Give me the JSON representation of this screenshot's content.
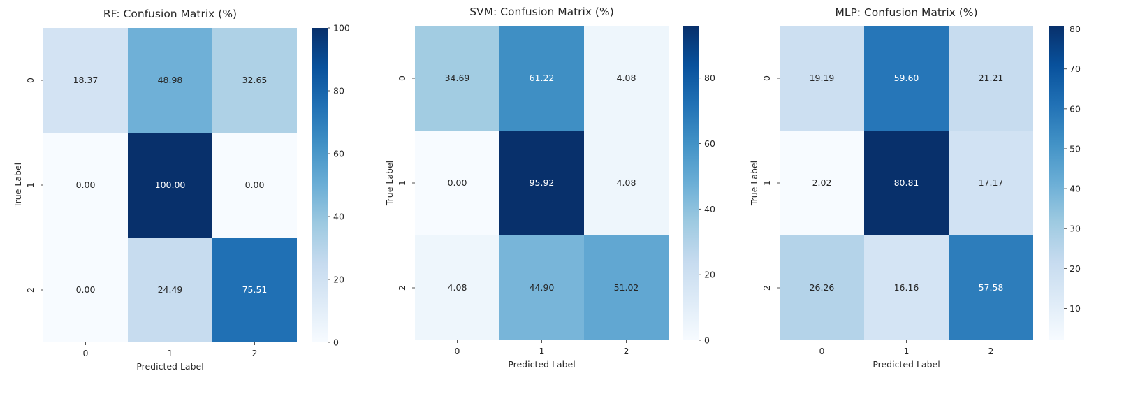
{
  "chart_data": [
    {
      "type": "heatmap",
      "title": "RF:  Confusion Matrix (%)",
      "xlabel": "Predicted Label",
      "ylabel": "True Label",
      "x_categories": [
        "0",
        "1",
        "2"
      ],
      "y_categories": [
        "0",
        "1",
        "2"
      ],
      "values": [
        [
          18.37,
          48.98,
          32.65
        ],
        [
          0.0,
          100.0,
          0.0
        ],
        [
          0.0,
          24.49,
          75.51
        ]
      ],
      "cell_labels": [
        [
          "18.37",
          "48.98",
          "32.65"
        ],
        [
          "0.00",
          "100.00",
          "0.00"
        ],
        [
          "0.00",
          "24.49",
          "75.51"
        ]
      ],
      "colorbar_range": [
        0,
        100
      ],
      "colorbar_ticks": [
        "0",
        "20",
        "40",
        "60",
        "80",
        "100"
      ],
      "colormap": "Blues"
    },
    {
      "type": "heatmap",
      "title": "SVM:  Confusion Matrix (%)",
      "xlabel": "Predicted Label",
      "ylabel": "True Label",
      "x_categories": [
        "0",
        "1",
        "2"
      ],
      "y_categories": [
        "0",
        "1",
        "2"
      ],
      "values": [
        [
          34.69,
          61.22,
          4.08
        ],
        [
          0.0,
          95.92,
          4.08
        ],
        [
          4.08,
          44.9,
          51.02
        ]
      ],
      "cell_labels": [
        [
          "34.69",
          "61.22",
          "4.08"
        ],
        [
          "0.00",
          "95.92",
          "4.08"
        ],
        [
          "4.08",
          "44.90",
          "51.02"
        ]
      ],
      "colorbar_range": [
        0,
        95.92
      ],
      "colorbar_ticks": [
        "0",
        "20",
        "40",
        "60",
        "80"
      ],
      "colormap": "Blues"
    },
    {
      "type": "heatmap",
      "title": "MLP: Confusion Matrix (%)",
      "xlabel": "Predicted Label",
      "ylabel": "True Label",
      "x_categories": [
        "0",
        "1",
        "2"
      ],
      "y_categories": [
        "0",
        "1",
        "2"
      ],
      "values": [
        [
          19.19,
          59.6,
          21.21
        ],
        [
          2.02,
          80.81,
          17.17
        ],
        [
          26.26,
          16.16,
          57.58
        ]
      ],
      "cell_labels": [
        [
          "19.19",
          "59.60",
          "21.21"
        ],
        [
          "2.02",
          "80.81",
          "17.17"
        ],
        [
          "26.26",
          "16.16",
          "57.58"
        ]
      ],
      "colorbar_range": [
        2.02,
        80.81
      ],
      "colorbar_ticks": [
        "10",
        "20",
        "30",
        "40",
        "50",
        "60",
        "70",
        "80"
      ],
      "colormap": "Blues"
    }
  ]
}
